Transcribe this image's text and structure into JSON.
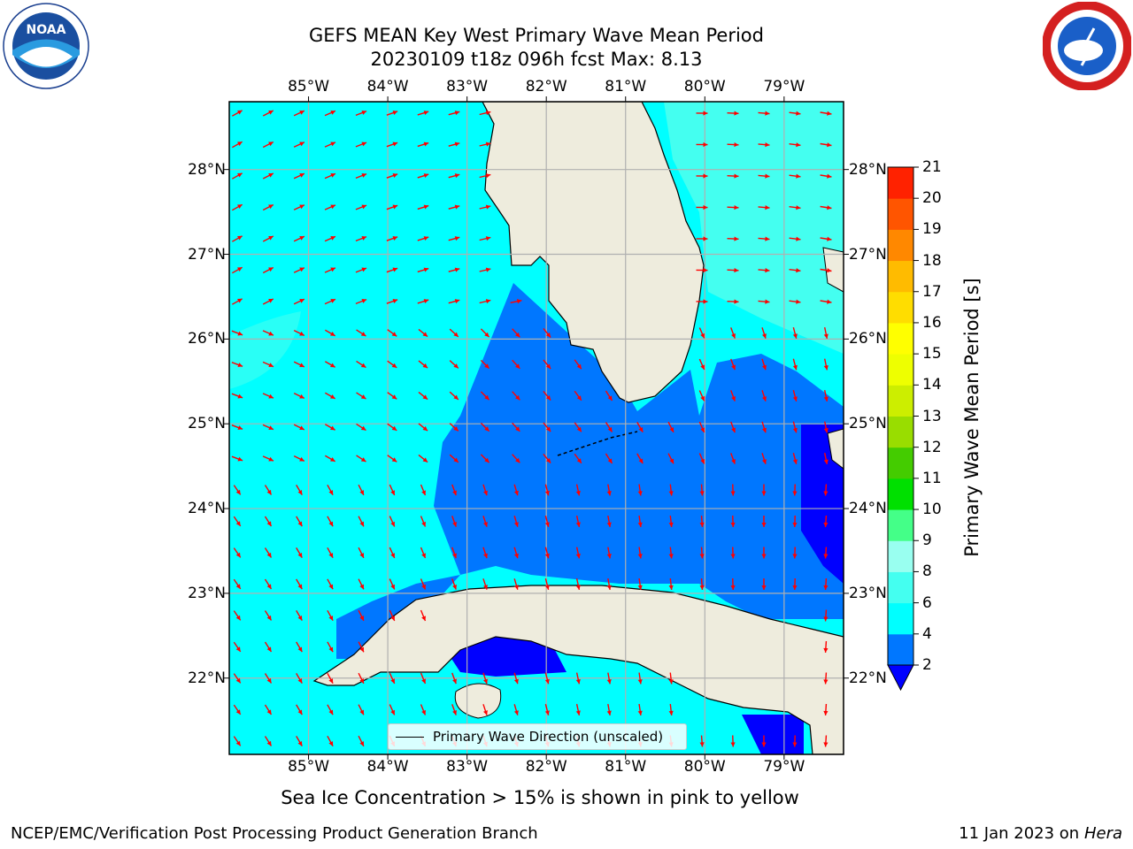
{
  "title_line1": "GEFS MEAN Key West Primary Wave Mean Period",
  "title_line2": "20230109 t18z 096h fcst   Max: 8.13",
  "logos": {
    "left": {
      "name": "noaa-logo",
      "text": "NOAA",
      "ring_text": "NATIONAL OCEANIC AND ATMOSPHERIC ADMINISTRATION · U.S. DEPARTMENT OF COMMERCE"
    },
    "right": {
      "name": "nws-logo",
      "ring_text": "NATIONAL WEATHER SERVICE"
    }
  },
  "map": {
    "lon_labels": [
      "85°W",
      "84°W",
      "83°W",
      "82°W",
      "81°W",
      "80°W",
      "79°W"
    ],
    "lat_labels": [
      "28°N",
      "27°N",
      "26°N",
      "25°N",
      "24°N",
      "23°N",
      "22°N"
    ],
    "extent": {
      "lon_min": -86.0,
      "lon_max": -78.25,
      "lat_min": 21.1,
      "lat_max": 28.8
    },
    "grid": true,
    "arrow_color": "#ff0000",
    "land_color": "#eeecdd",
    "missing_color": "#ffffff"
  },
  "colorbar": {
    "title": "Primary Wave Mean Period [s]",
    "tick_labels": [
      "21",
      "20",
      "19",
      "18",
      "17",
      "16",
      "15",
      "14",
      "13",
      "12",
      "11",
      "10",
      "9",
      "8",
      "6",
      "4",
      "2"
    ],
    "colors": [
      "#0000ff",
      "#0077ff",
      "#00ffff",
      "#44fff0",
      "#99fff0",
      "#44ff88",
      "#00e000",
      "#44cc00",
      "#99dd00",
      "#ccee00",
      "#eeff00",
      "#ffff00",
      "#ffdd00",
      "#ffbb00",
      "#ff8800",
      "#ff5500",
      "#ff2200",
      "#ff0000"
    ]
  },
  "legend": {
    "label": "Primary Wave Direction (unscaled)"
  },
  "note": "Sea Ice Concentration > 15% is shown in pink to yellow",
  "footer_left": "NCEP/EMC/Verification Post Processing Product Generation Branch",
  "footer_right_prefix": "11 Jan 2023 on ",
  "footer_right_host": "Hera"
}
